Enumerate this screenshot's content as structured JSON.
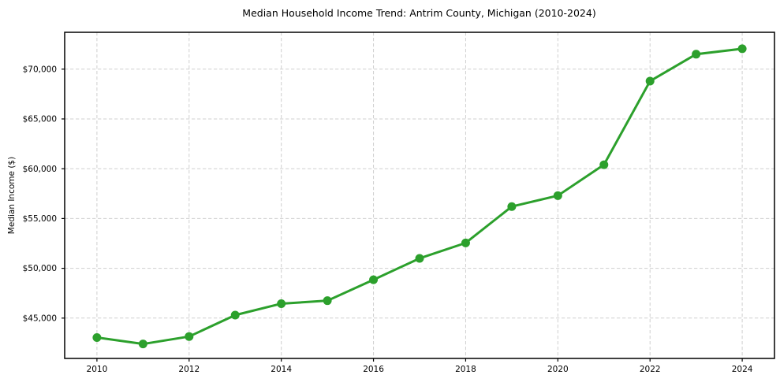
{
  "chart_data": {
    "type": "line",
    "title": "Median Household Income Trend: Antrim County, Michigan (2010-2024)",
    "xlabel": "",
    "ylabel": "Median Income ($)",
    "series_name": "Median Household Income",
    "x": [
      2010,
      2011,
      2012,
      2013,
      2014,
      2015,
      2016,
      2017,
      2018,
      2019,
      2020,
      2021,
      2022,
      2023,
      2024
    ],
    "values": [
      43050,
      42400,
      43150,
      45300,
      46450,
      46750,
      48850,
      51000,
      52550,
      56200,
      57300,
      60400,
      68800,
      71500,
      72050
    ],
    "xlim": [
      2009.3,
      2024.7
    ],
    "ylim": [
      40950,
      73700
    ],
    "x_ticks": [
      2010,
      2012,
      2014,
      2016,
      2018,
      2020,
      2022,
      2024
    ],
    "x_tick_labels": [
      "2010",
      "2012",
      "2014",
      "2016",
      "2018",
      "2020",
      "2022",
      "2024"
    ],
    "y_ticks": [
      45000,
      50000,
      55000,
      60000,
      65000,
      70000
    ],
    "y_tick_labels": [
      "$45,000",
      "$50,000",
      "$55,000",
      "$60,000",
      "$65,000",
      "$70,000"
    ],
    "grid": true,
    "legend": "none",
    "colors": {
      "line": "#2ca02c",
      "marker": "#2ca02c",
      "grid": "#cfcfcf",
      "frame": "#000000",
      "background": "#ffffff"
    }
  }
}
